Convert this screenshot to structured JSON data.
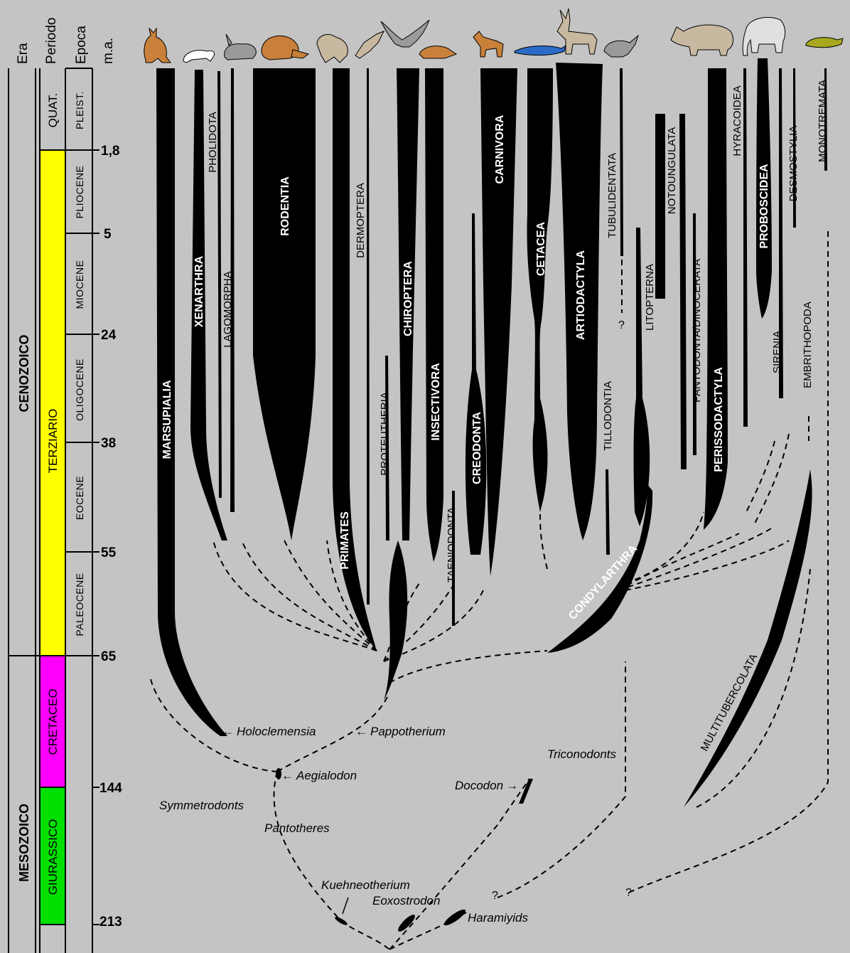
{
  "headers": {
    "era": "Era",
    "periodo": "Periodo",
    "epoca": "Epoca",
    "ma": "m.a."
  },
  "eras": [
    {
      "key": "cenozoico",
      "label": "CENOZOICO"
    },
    {
      "key": "mesozoico",
      "label": "MESOZOICO"
    }
  ],
  "periods": [
    {
      "key": "quat",
      "label": "QUAT.",
      "color": "#c4c4c4"
    },
    {
      "key": "terziario",
      "label": "TERZIARIO",
      "color": "#ffff00"
    },
    {
      "key": "cretaceo",
      "label": "CRETACEO",
      "color": "#ff00ff"
    },
    {
      "key": "giurassico",
      "label": "GIURASSICO",
      "color": "#00e000"
    }
  ],
  "epochs": [
    "PLEIST.",
    "PLIOCENE",
    "MIOCENE",
    "OLIGOCENE",
    "EOCENE",
    "PALEOCENE"
  ],
  "ma_ticks": [
    "1,8",
    "5",
    "24",
    "38",
    "55",
    "65",
    "144",
    "213"
  ],
  "clades": {
    "marsupialia": "MARSUPIALIA",
    "xenarthra": "XENARTHRA",
    "pholidota": "PHOLIDOTA",
    "lagomorpha": "LAGOMORPHA",
    "rodentia": "RODENTIA",
    "primates": "PRIMATES",
    "dermoptera": "DERMOPTERA",
    "proteutheria": "PROTEUTHERIA",
    "chiroptera": "CHIROPTERA",
    "insectivora": "INSECTIVORA",
    "taeniodonta": "TAENIODONTA",
    "creodonta": "CREODONTA",
    "carnivora": "CARNIVORA",
    "cetacea": "CETACEA",
    "artiodactyla": "ARTIODACTYLA",
    "tillodontia": "TILLODONTIA",
    "tubulidentata": "TUBULIDENTATA",
    "litopterna": "LITOPTERNA",
    "notoungulata": "NOTOUNGULATA",
    "pantodonta": "PANTODONTA/DINOCERATA",
    "perissodactyla": "PERISSODACTYLA",
    "hyracoidea": "HYRACOIDEA",
    "proboscidea": "PROBOSCIDEA",
    "sirenia": "SIRENIA",
    "desmostylia": "DESMOSTYLIA",
    "embrithopoda": "EMBRITHOPODA",
    "monotremata": "MONOTREMATA",
    "condylarthra": "CONDYLARTHRA",
    "multitubercolata": "MULTITUBERCOLATA"
  },
  "fossils": {
    "holoclemensia": "Holoclemensia",
    "pappotherium": "Pappotherium",
    "aegialodon": "Aegialodon",
    "triconodonts": "Triconodonts",
    "docodon": "Docodon",
    "symmetrodonts": "Symmetrodonts",
    "pantotheres": "Pantotheres",
    "kuehneotherium": "Kuehneotherium",
    "eoxostrodon": "Eoxostrodon",
    "haramiyids": "Haramiyids"
  },
  "question_mark": "?",
  "animal_icons": [
    "kangaroo-icon",
    "armadillo-icon",
    "rabbit-icon",
    "beaver-icon",
    "monkey-icon",
    "colugo-icon",
    "bat-icon",
    "mole-icon",
    "dog-icon",
    "dolphin-icon",
    "deer-icon",
    "aardvark-icon",
    "rhinoceros-icon",
    "elephant-icon",
    "platypus-icon"
  ],
  "colors": {
    "background": "#c4c4c4",
    "branch": "#000000",
    "animal_brown": "#c8803a",
    "animal_white": "#ffffff",
    "animal_grey": "#9a9a9a",
    "animal_tan": "#c8b8a0",
    "animal_blue": "#2a6cc8",
    "animal_olive": "#a8a820"
  }
}
